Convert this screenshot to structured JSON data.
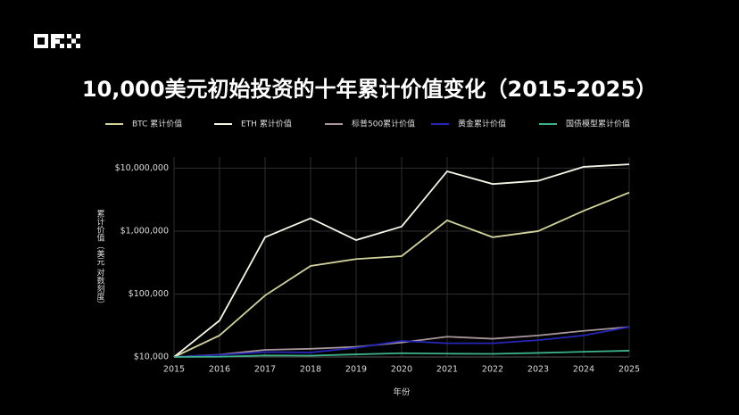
{
  "chart_data": {
    "type": "line",
    "title": "10,000美元初始投资的十年累计价值变化（2015-2025）",
    "x_label": "年份",
    "y_label": "累计价值（美元 对数刻度）",
    "x": [
      2015,
      2016,
      2017,
      2018,
      2019,
      2020,
      2021,
      2022,
      2023,
      2024,
      2025
    ],
    "xlim": [
      2015,
      2025
    ],
    "xticks": [
      2015,
      2016,
      2017,
      2018,
      2019,
      2020,
      2021,
      2022,
      2023,
      2024,
      2025
    ],
    "ylim": [
      10000,
      15000000
    ],
    "log_y": true,
    "grid": true,
    "yticks": [
      {
        "value": 10000,
        "label": "$10,000"
      },
      {
        "value": 100000,
        "label": "$100,000"
      },
      {
        "value": 1000000,
        "label": "$1,000,000"
      },
      {
        "value": 10000000,
        "label": "$10,000,000"
      }
    ],
    "series": [
      {
        "name": "BTC 累计价值",
        "color": "#d2d39a",
        "values": [
          10000,
          22000,
          95000,
          280000,
          360000,
          400000,
          1480000,
          800000,
          1000000,
          2100000,
          4100000
        ]
      },
      {
        "name": "ETH 累计价值",
        "color": "#f5f5e6",
        "values": [
          10000,
          38000,
          800000,
          1600000,
          720000,
          1180000,
          8900000,
          5600000,
          6300000,
          10500000,
          11500000
        ]
      },
      {
        "name": "标普500累计价值",
        "color": "#a8969a",
        "values": [
          10000,
          10900,
          13000,
          13500,
          14500,
          17000,
          21000,
          19500,
          22000,
          26000,
          30000
        ]
      },
      {
        "name": "黄金累计价值",
        "color": "#2626b8",
        "values": [
          10000,
          10800,
          12000,
          11800,
          14000,
          18000,
          16500,
          16500,
          18500,
          22000,
          30000
        ]
      },
      {
        "name": "国债模型累计价值",
        "color": "#3cb38a",
        "values": [
          10000,
          10100,
          10600,
          10500,
          11000,
          11500,
          11300,
          11200,
          11600,
          12100,
          12600
        ]
      }
    ]
  }
}
